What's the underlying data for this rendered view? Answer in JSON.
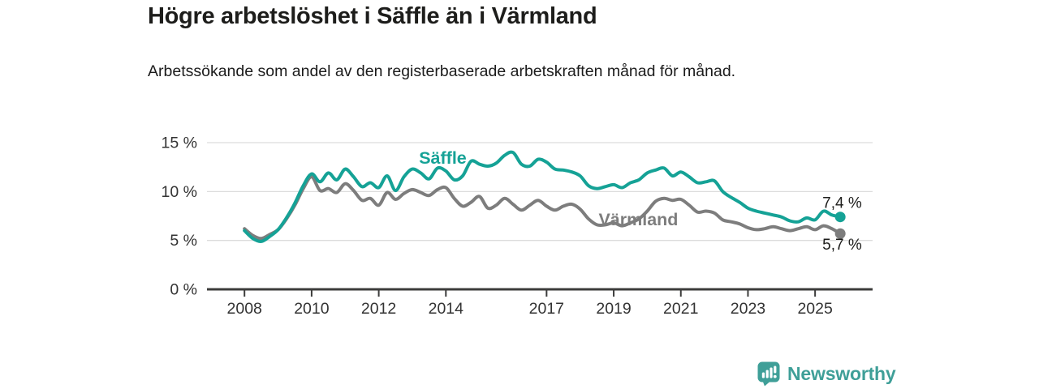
{
  "header": {
    "title": "Högre arbetslöshet i Säffle än i Värmland",
    "subtitle": "Arbetssökande som andel av den registerbaserade arbetskraften månad för månad."
  },
  "chart_data": {
    "type": "line",
    "x_label": "",
    "y_label": "",
    "ylim": [
      0,
      15.5
    ],
    "grid": "horizontal",
    "x_years": [
      2008.0,
      2008.25,
      2008.5,
      2008.75,
      2009.0,
      2009.25,
      2009.5,
      2009.75,
      2010.0,
      2010.25,
      2010.5,
      2010.75,
      2011.0,
      2011.25,
      2011.5,
      2011.75,
      2012.0,
      2012.25,
      2012.5,
      2012.75,
      2013.0,
      2013.25,
      2013.5,
      2013.75,
      2014.0,
      2014.25,
      2014.5,
      2014.75,
      2015.0,
      2015.25,
      2015.5,
      2015.75,
      2016.0,
      2016.25,
      2016.5,
      2016.75,
      2017.0,
      2017.25,
      2017.5,
      2017.75,
      2018.0,
      2018.25,
      2018.5,
      2018.75,
      2019.0,
      2019.25,
      2019.5,
      2019.75,
      2020.0,
      2020.25,
      2020.5,
      2020.75,
      2021.0,
      2021.25,
      2021.5,
      2021.75,
      2022.0,
      2022.25,
      2022.5,
      2022.75,
      2023.0,
      2023.25,
      2023.5,
      2023.75,
      2024.0,
      2024.25,
      2024.5,
      2024.75,
      2025.0,
      2025.25,
      2025.5,
      2025.75
    ],
    "y_ticks": [
      {
        "value": 0,
        "label": "0 %"
      },
      {
        "value": 5,
        "label": "5 %"
      },
      {
        "value": 10,
        "label": "10 %"
      },
      {
        "value": 15,
        "label": "15 %"
      }
    ],
    "x_ticks": [
      {
        "year": 2008,
        "label": "2008"
      },
      {
        "year": 2010,
        "label": "2010"
      },
      {
        "year": 2012,
        "label": "2012"
      },
      {
        "year": 2014,
        "label": "2014"
      },
      {
        "year": 2017,
        "label": "2017"
      },
      {
        "year": 2019,
        "label": "2019"
      },
      {
        "year": 2021,
        "label": "2021"
      },
      {
        "year": 2023,
        "label": "2023"
      },
      {
        "year": 2025,
        "label": "2025"
      }
    ],
    "series": [
      {
        "name": "Säffle",
        "color": "#15a296",
        "end_label": "7,4 %",
        "label_pos": {
          "year": 2013.2,
          "pct": 12.85
        },
        "values": [
          6.0,
          5.2,
          4.9,
          5.4,
          6.1,
          7.3,
          8.8,
          10.6,
          11.8,
          11.0,
          11.9,
          11.2,
          12.3,
          11.5,
          10.5,
          10.9,
          10.4,
          11.6,
          10.1,
          11.5,
          12.3,
          11.9,
          11.3,
          12.4,
          12.1,
          11.2,
          11.6,
          13.1,
          12.8,
          12.6,
          12.9,
          13.7,
          14.0,
          12.8,
          12.6,
          13.3,
          13.0,
          12.3,
          12.2,
          12.0,
          11.6,
          10.6,
          10.3,
          10.5,
          10.7,
          10.4,
          10.9,
          11.2,
          11.9,
          12.2,
          12.4,
          11.6,
          12.0,
          11.5,
          10.9,
          11.0,
          11.1,
          10.0,
          9.4,
          8.9,
          8.3,
          8.0,
          7.8,
          7.6,
          7.4,
          7.0,
          6.9,
          7.3,
          7.1,
          8.0,
          7.6,
          7.4
        ]
      },
      {
        "name": "Värmland",
        "color": "#7d7d7d",
        "end_label": "5,7 %",
        "label_pos": {
          "year": 2018.55,
          "pct": 6.55
        },
        "values": [
          6.2,
          5.5,
          5.2,
          5.6,
          6.1,
          7.2,
          8.6,
          10.3,
          11.5,
          10.1,
          10.3,
          9.9,
          10.8,
          10.1,
          9.1,
          9.3,
          8.6,
          9.9,
          9.2,
          9.8,
          10.2,
          9.9,
          9.6,
          10.2,
          10.4,
          9.3,
          8.5,
          8.9,
          9.5,
          8.3,
          8.6,
          9.3,
          8.7,
          8.1,
          8.6,
          9.1,
          8.5,
          8.1,
          8.5,
          8.7,
          8.2,
          7.2,
          6.6,
          6.6,
          6.8,
          6.5,
          6.8,
          7.2,
          8.0,
          9.0,
          9.3,
          9.1,
          9.2,
          8.6,
          7.9,
          8.0,
          7.8,
          7.1,
          6.9,
          6.7,
          6.3,
          6.1,
          6.2,
          6.4,
          6.2,
          6.0,
          6.2,
          6.4,
          6.1,
          6.5,
          6.2,
          5.7
        ]
      }
    ]
  },
  "footer": {
    "brand": "Newsworthy",
    "logo_icon": "bar-chart-speech-bubble-icon"
  },
  "colors": {
    "accent_teal": "#15a296",
    "series_gray": "#7d7d7d",
    "axis_line": "#3c3c3b",
    "gridline": "#dcdcdc",
    "text_dark": "#1d1d1b",
    "axis_text": "#333333",
    "logo_teal": "#3f9f98"
  }
}
